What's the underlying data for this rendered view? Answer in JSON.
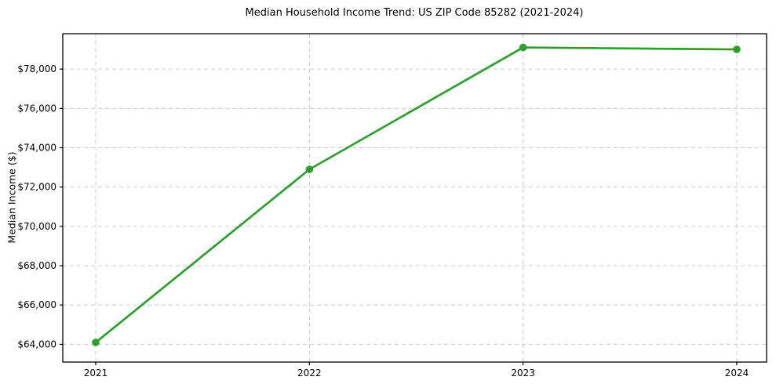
{
  "chart_data": {
    "type": "line",
    "title": "Median Household Income Trend: US ZIP Code 85282 (2021-2024)",
    "xlabel": "",
    "ylabel": "Median Income ($)",
    "x": [
      2021,
      2022,
      2023,
      2024
    ],
    "x_tick_labels": [
      "2021",
      "2022",
      "2023",
      "2024"
    ],
    "series": [
      {
        "name": "Median Household Income",
        "values": [
          64100,
          72900,
          79100,
          79000
        ]
      }
    ],
    "y_ticks": [
      64000,
      66000,
      68000,
      70000,
      72000,
      74000,
      76000,
      78000
    ],
    "y_tick_labels": [
      "$64,000",
      "$66,000",
      "$68,000",
      "$70,000",
      "$72,000",
      "$74,000",
      "$76,000",
      "$78,000"
    ],
    "ylim": [
      63100,
      79800
    ],
    "grid": true,
    "grid_style": "dashed",
    "legend_position": "none",
    "line_color": "#2ca02c",
    "marker": "circle",
    "grid_color": "#cccccc",
    "axis_color": "#000000",
    "background_color": "#ffffff"
  }
}
